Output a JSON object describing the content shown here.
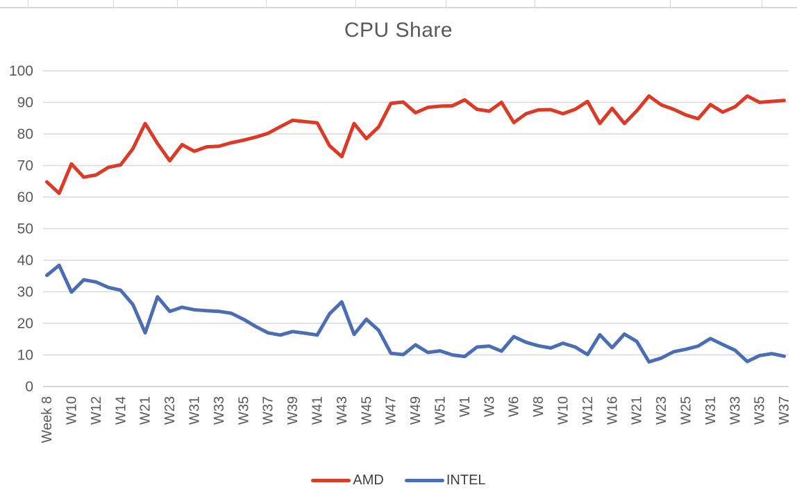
{
  "chart_data": {
    "type": "line",
    "title": "CPU Share",
    "xlabel": "",
    "ylabel": "",
    "ylim": [
      0,
      100
    ],
    "grid": true,
    "legend_position": "bottom",
    "y_ticks": [
      0,
      10,
      20,
      30,
      40,
      50,
      60,
      70,
      80,
      90,
      100
    ],
    "tick_every": 2,
    "x_tick_labels": [
      "Week 8",
      "W10",
      "W12",
      "W14",
      "W21",
      "W23",
      "W31",
      "W33",
      "W35",
      "W37",
      "W39",
      "W41",
      "W43",
      "W45",
      "W47",
      "W49",
      "W51",
      "W1",
      "W3",
      "W6",
      "W8",
      "W10",
      "W12",
      "W16",
      "W21",
      "W23",
      "W25",
      "W31",
      "W33",
      "W35",
      "W37"
    ],
    "series": [
      {
        "name": "AMD",
        "color": "#db3a26",
        "values": [
          64.8,
          61.2,
          70.5,
          66.3,
          67.0,
          69.4,
          70.2,
          75.3,
          83.3,
          77.0,
          71.5,
          76.6,
          74.5,
          75.9,
          76.1,
          77.2,
          78.0,
          79.0,
          80.2,
          82.3,
          84.3,
          83.9,
          83.5,
          76.3,
          72.8,
          83.3,
          78.5,
          82.2,
          89.7,
          90.1,
          86.7,
          88.4,
          88.8,
          88.9,
          90.8,
          87.8,
          87.2,
          90.0,
          83.6,
          86.4,
          87.6,
          87.7,
          86.4,
          87.8,
          90.3,
          83.3,
          88.1,
          83.3,
          87.3,
          92.0,
          89.2,
          87.8,
          86.0,
          84.8,
          89.3,
          86.9,
          88.6,
          92.0,
          90.0,
          90.3,
          90.6
        ]
      },
      {
        "name": "INTEL",
        "color": "#4a6db4",
        "values": [
          35.2,
          38.4,
          29.9,
          33.8,
          33.1,
          31.4,
          30.5,
          26.0,
          17.0,
          28.4,
          23.8,
          25.1,
          24.3,
          24.0,
          23.8,
          23.2,
          21.3,
          19.0,
          17.0,
          16.3,
          17.4,
          16.9,
          16.3,
          23.0,
          26.8,
          16.5,
          21.3,
          17.8,
          10.5,
          10.1,
          13.2,
          10.8,
          11.3,
          10.0,
          9.5,
          12.5,
          12.8,
          11.2,
          15.8,
          14.0,
          12.9,
          12.2,
          13.7,
          12.5,
          10.1,
          16.4,
          12.3,
          16.6,
          14.3,
          7.8,
          9.0,
          11.0,
          11.8,
          12.8,
          15.2,
          13.3,
          11.5,
          7.9,
          9.8,
          10.4,
          9.6
        ]
      }
    ]
  },
  "colors": {
    "title_text": "#595959",
    "axis_text": "#595959",
    "gridline": "#d9d9d9",
    "axis_line": "#c9c9c9",
    "legend_text": "#404040"
  }
}
